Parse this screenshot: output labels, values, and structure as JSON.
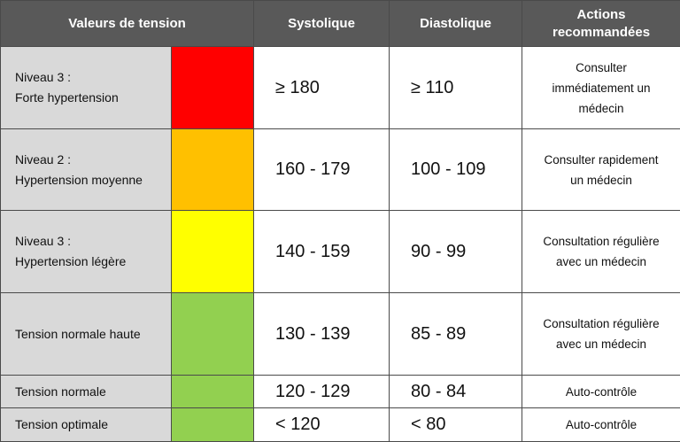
{
  "headers": {
    "values": "Valeurs de tension",
    "systolic": "Systolique",
    "diastolic": "Diastolique",
    "actions_line1": "Actions",
    "actions_line2": "recommandées"
  },
  "rows": [
    {
      "label_line1": "Niveau 3 :",
      "label_line2": "Forte hypertension",
      "color": "#ff0000",
      "systolic": "≥ 180",
      "diastolic": "≥ 110",
      "action_line1": "Consulter",
      "action_line2": "immédiatement un",
      "action_line3": "médecin"
    },
    {
      "label_line1": "Niveau 2 :",
      "label_line2": "Hypertension moyenne",
      "color": "#ffc000",
      "systolic": "160 - 179",
      "diastolic": "100 - 109",
      "action_line1": "Consulter rapidement",
      "action_line2": "un médecin"
    },
    {
      "label_line1": "Niveau 3 :",
      "label_line2": "Hypertension légère",
      "color": "#ffff00",
      "systolic": "140 - 159",
      "diastolic": "90 - 99",
      "action_line1": "Consultation régulière",
      "action_line2": "avec un médecin"
    },
    {
      "label_line1": "Tension normale haute",
      "color": "#92d050",
      "systolic": "130 - 139",
      "diastolic": "85 - 89",
      "action_line1": "Consultation régulière",
      "action_line2": "avec un médecin"
    },
    {
      "label_line1": "Tension normale",
      "color": "#92d050",
      "systolic": "120 - 129",
      "diastolic": "80 - 84",
      "action_line1": "Auto-contrôle"
    },
    {
      "label_line1": "Tension optimale",
      "color": "#92d050",
      "systolic": "< 120",
      "diastolic": "< 80",
      "action_line1": "Auto-contrôle"
    }
  ]
}
